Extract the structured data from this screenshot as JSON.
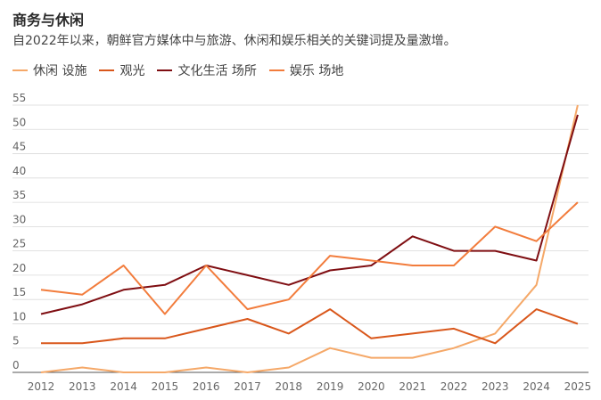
{
  "chart_data": {
    "type": "line",
    "title": "商务与休闲",
    "subtitle": "自2022年以来，朝鲜官方媒体中与旅游、休闲和娱乐相关的关键词提及量激增。",
    "xlabel": "",
    "ylabel": "",
    "ylim": [
      0,
      55
    ],
    "yticks": [
      0,
      5,
      10,
      15,
      20,
      25,
      30,
      35,
      40,
      45,
      50,
      55
    ],
    "grid": true,
    "legend_position": "top-left",
    "categories": [
      "2012",
      "2013",
      "2014",
      "2015",
      "2016",
      "2017",
      "2018",
      "2019",
      "2020",
      "2021",
      "2022",
      "2023",
      "2024",
      "2025"
    ],
    "series": [
      {
        "name": "休闲 设施",
        "color": "#f5a868",
        "values": [
          0,
          1,
          0,
          0,
          1,
          0,
          1,
          5,
          3,
          3,
          5,
          8,
          18,
          55
        ]
      },
      {
        "name": "观光",
        "color": "#d9571b",
        "values": [
          6,
          6,
          7,
          7,
          9,
          11,
          8,
          13,
          7,
          8,
          9,
          6,
          13,
          10
        ]
      },
      {
        "name": "文化生活 场所",
        "color": "#7f0e12",
        "values": [
          12,
          14,
          17,
          18,
          22,
          20,
          18,
          21,
          22,
          28,
          25,
          25,
          23,
          53
        ]
      },
      {
        "name": "娱乐 场地",
        "color": "#f27c3c",
        "values": [
          17,
          16,
          22,
          12,
          22,
          13,
          15,
          24,
          23,
          22,
          22,
          30,
          27,
          35
        ]
      }
    ]
  }
}
